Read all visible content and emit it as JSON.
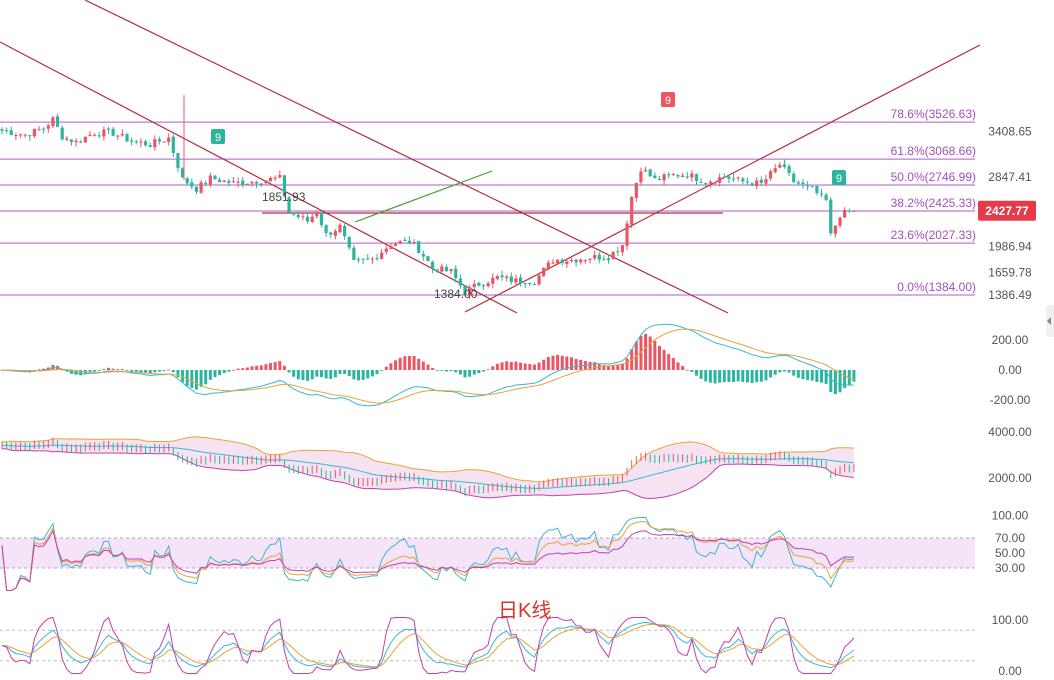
{
  "chart_data": {
    "type": "candlestick",
    "watermark": "日K线",
    "main": {
      "price_ticks": [
        "3408.65",
        "2847.41",
        "1986.94",
        "1659.78",
        "1386.49"
      ],
      "current_price": "2427.77",
      "fib_levels": [
        {
          "label": "78.6%(3526.63)",
          "value": 3526.63
        },
        {
          "label": "61.8%(3068.66)",
          "value": 3068.66
        },
        {
          "label": "50.0%(2746.99)",
          "value": 2746.99
        },
        {
          "label": "38.2%(2425.33)",
          "value": 2425.33
        },
        {
          "label": "23.6%(2027.33)",
          "value": 2027.33
        },
        {
          "label": "0.0%(1384.00)",
          "value": 1384.0
        }
      ],
      "annotations": {
        "low": "1384.00",
        "swing": "1851.93",
        "count_marks": [
          "9",
          "9",
          "9"
        ]
      }
    },
    "macd": {
      "ticks": [
        "200.00",
        "0.00",
        "-200.00"
      ]
    },
    "boll": {
      "ticks": [
        "4000.00",
        "2000.00"
      ]
    },
    "rsi": {
      "ticks": [
        "100.00",
        "70.00",
        "50.00",
        "30.00"
      ]
    },
    "kdj": {
      "ticks": [
        "100.00",
        "0.00"
      ]
    },
    "colors": {
      "up": "#ec5564",
      "down": "#2cb59e",
      "fib": "#a64dbf",
      "trend": "#b32d3d",
      "green_trend": "#4a9e2f",
      "price_tag": "#e33b47"
    }
  }
}
